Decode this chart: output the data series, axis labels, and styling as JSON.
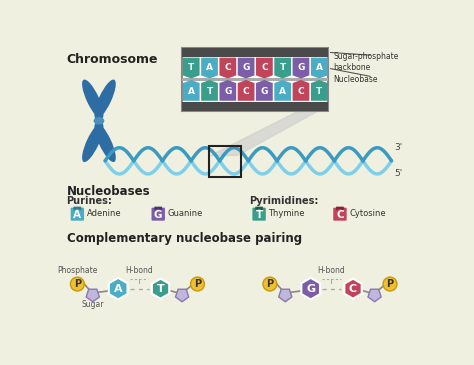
{
  "bg_color": "#f0f0e0",
  "title_chromosome": "Chromosome",
  "title_nucleobases": "Nucleobases",
  "title_purines": "Purines:",
  "title_pyrimidines": "Pyrimidines:",
  "title_pairing": "Complementary nucleobase pairing",
  "label_sugar_phosphate": "Sugar-phosphate\nbackbone",
  "label_nucleobase": "Nucleobase",
  "label_3prime": "3'",
  "label_5prime": "5'",
  "label_phosphate": "Phosphate",
  "label_sugar": "Sugar",
  "label_hbond": "H-bond",
  "purines": [
    {
      "letter": "A",
      "name": "Adenine",
      "color": "#4bacc6",
      "tab_color": "#2e7a8a"
    },
    {
      "letter": "G",
      "name": "Guanine",
      "color": "#7b5ea7",
      "tab_color": "#4e3070"
    }
  ],
  "pyrimidines": [
    {
      "letter": "T",
      "name": "Thymine",
      "color": "#3a9e8c",
      "tab_color": "#1e5e50"
    },
    {
      "letter": "C",
      "name": "Cytosine",
      "color": "#c0445a",
      "tab_color": "#8a2030"
    }
  ],
  "dna_sequence_top": [
    "T",
    "A",
    "C",
    "G",
    "C",
    "T",
    "G",
    "A"
  ],
  "dna_sequence_bot": [
    "A",
    "T",
    "G",
    "C",
    "G",
    "A",
    "C",
    "T"
  ],
  "seq_colors": {
    "T": "#3a9e8c",
    "A": "#4bacc6",
    "C": "#c0445a",
    "G": "#7b5ea7"
  },
  "chromosome_color": "#2e6da4",
  "centromere_color": "#4a8fc0",
  "helix_color_dark": "#3a9abf",
  "helix_color_light": "#7ecfea",
  "phosphate_color": "#f0c030",
  "sugar_color": "#c0b8dc",
  "adenine_color": "#4bacc6",
  "thymine_color": "#3a9e8c",
  "guanine_color": "#7b5ea7",
  "cytosine_color": "#c0445a"
}
